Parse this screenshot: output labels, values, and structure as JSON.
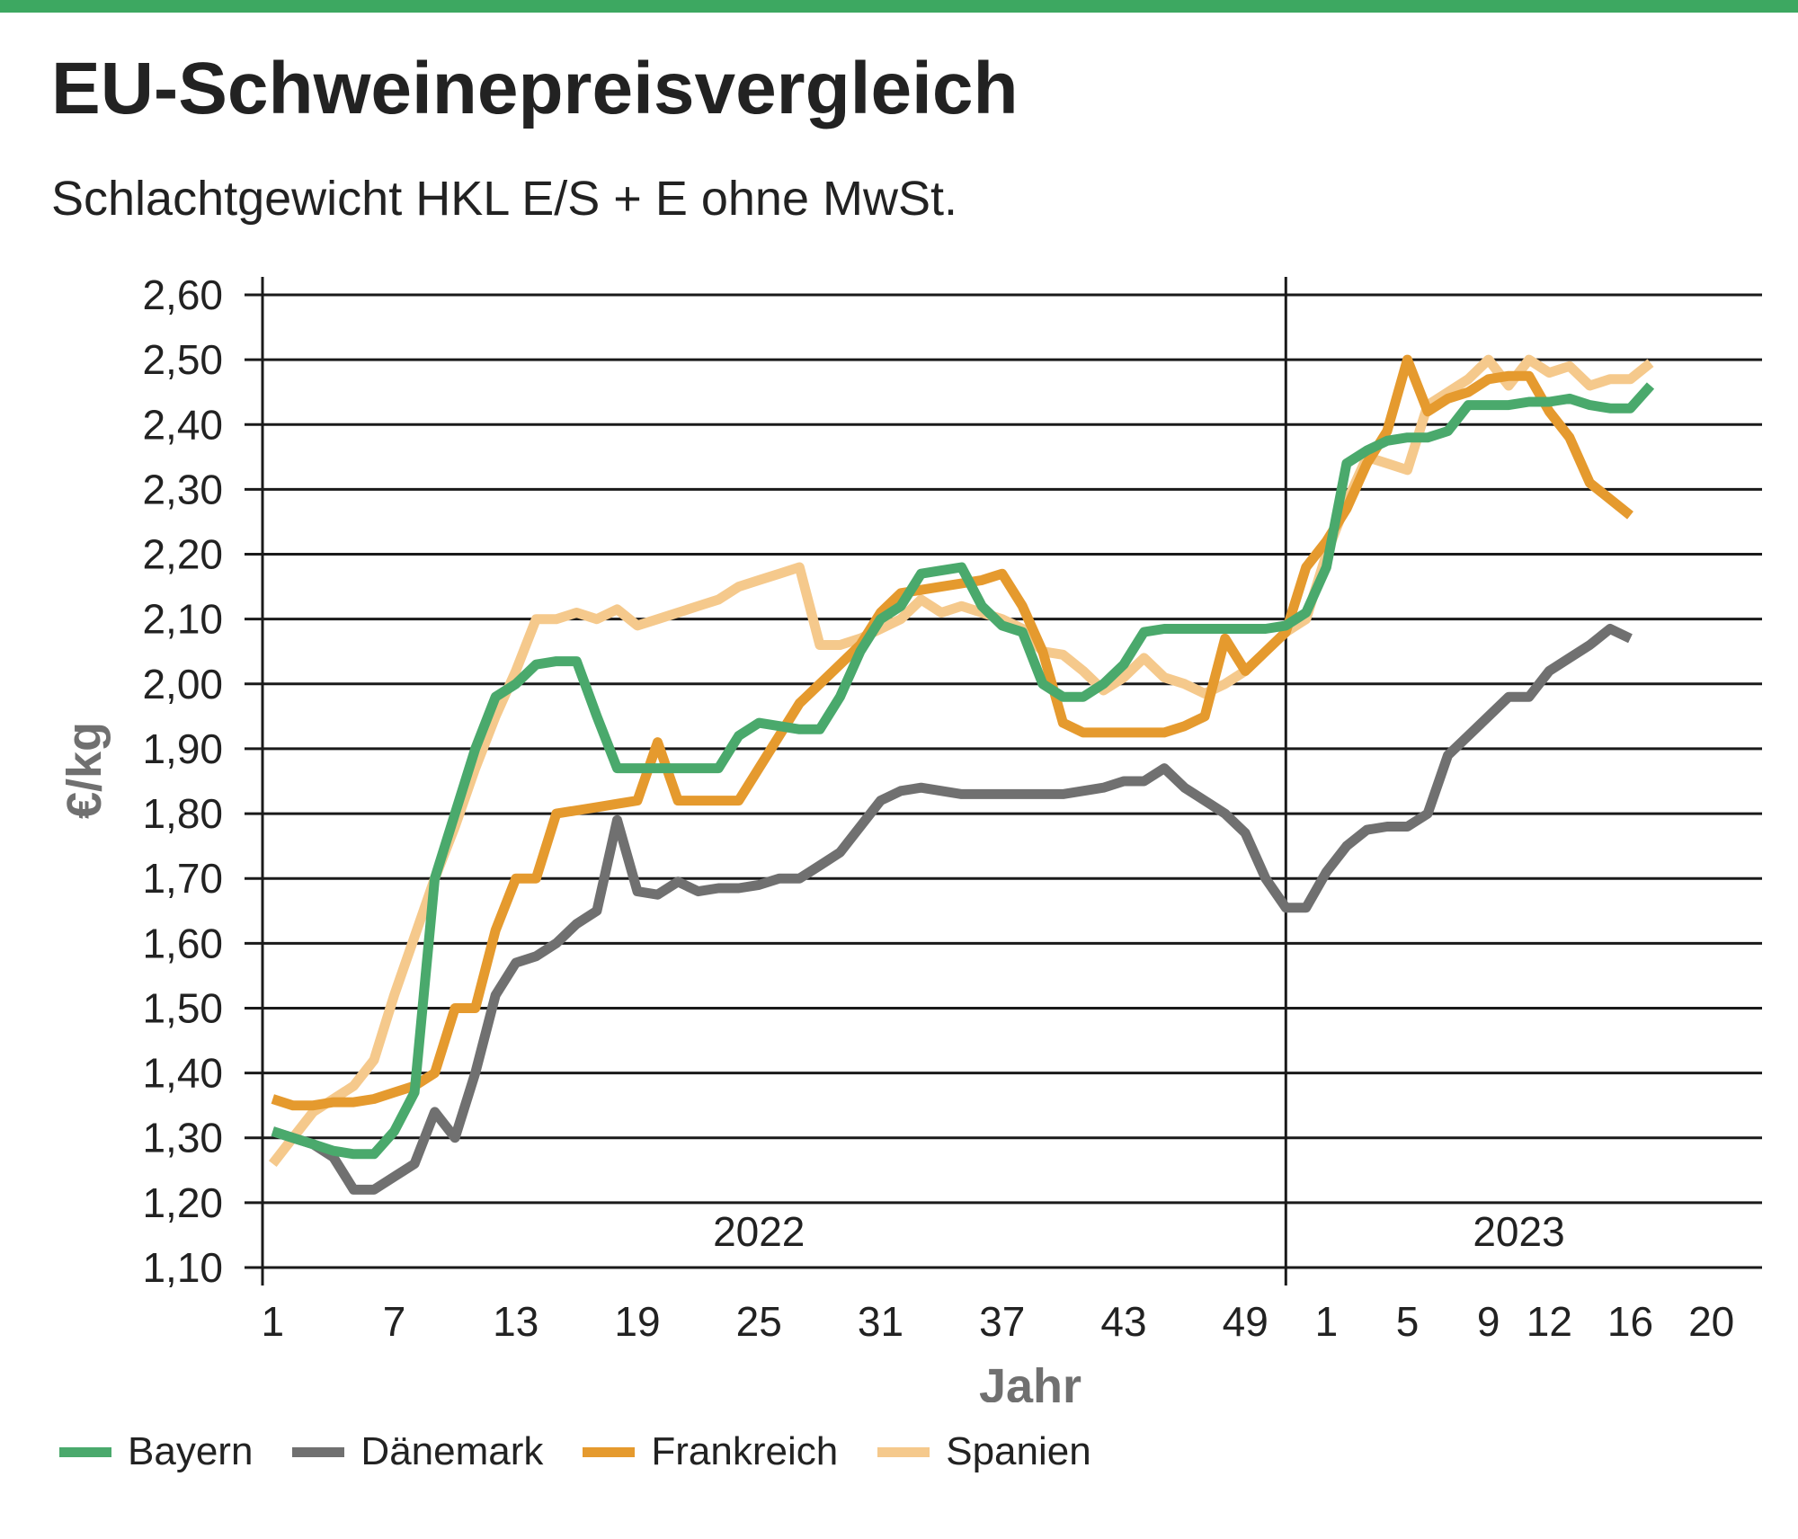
{
  "title": "EU-Schweinepreisvergleich",
  "subtitle": "Schlachtgewicht HKL E/S + E ohne MwSt.",
  "colors": {
    "accent_bar": "#3da861"
  },
  "chart_data": {
    "type": "line",
    "ylabel": "€/kg",
    "xlabel": "Jahr",
    "ylim": [
      1.1,
      2.6
    ],
    "y_ticks": [
      "2,60",
      "2,50",
      "2,40",
      "2,30",
      "2,20",
      "2,10",
      "2,00",
      "1,90",
      "1,80",
      "1,70",
      "1,60",
      "1,50",
      "1,40",
      "1,30",
      "1,20",
      "1,10"
    ],
    "x_weeks_total": 74,
    "x_tick_labels": [
      {
        "label": "1",
        "week": 1
      },
      {
        "label": "7",
        "week": 7
      },
      {
        "label": "13",
        "week": 13
      },
      {
        "label": "19",
        "week": 19
      },
      {
        "label": "25",
        "week": 25
      },
      {
        "label": "31",
        "week": 31
      },
      {
        "label": "37",
        "week": 37
      },
      {
        "label": "43",
        "week": 43
      },
      {
        "label": "49",
        "week": 49
      },
      {
        "label": "1",
        "week": 53
      },
      {
        "label": "5",
        "week": 57
      },
      {
        "label": "9",
        "week": 61
      },
      {
        "label": "12",
        "week": 64
      },
      {
        "label": "16",
        "week": 68
      },
      {
        "label": "20",
        "week": 72
      }
    ],
    "year_labels": [
      {
        "label": "2022",
        "center_week": 25
      },
      {
        "label": "2023",
        "center_week": 62.5
      }
    ],
    "year_divider_week": 51,
    "grid": true,
    "legend_position": "bottom",
    "series": [
      {
        "name": "Bayern",
        "color": "#4aa96c",
        "points": [
          [
            1,
            1.31
          ],
          [
            2,
            1.3
          ],
          [
            3,
            1.29
          ],
          [
            4,
            1.28
          ],
          [
            5,
            1.275
          ],
          [
            6,
            1.275
          ],
          [
            7,
            1.31
          ],
          [
            8,
            1.37
          ],
          [
            9,
            1.7
          ],
          [
            10,
            1.8
          ],
          [
            11,
            1.9
          ],
          [
            12,
            1.98
          ],
          [
            13,
            2.0
          ],
          [
            14,
            2.03
          ],
          [
            15,
            2.035
          ],
          [
            16,
            2.035
          ],
          [
            17,
            1.95
          ],
          [
            18,
            1.87
          ],
          [
            19,
            1.87
          ],
          [
            20,
            1.87
          ],
          [
            21,
            1.87
          ],
          [
            22,
            1.87
          ],
          [
            23,
            1.87
          ],
          [
            24,
            1.92
          ],
          [
            25,
            1.94
          ],
          [
            26,
            1.935
          ],
          [
            27,
            1.93
          ],
          [
            28,
            1.93
          ],
          [
            29,
            1.98
          ],
          [
            30,
            2.05
          ],
          [
            31,
            2.1
          ],
          [
            32,
            2.12
          ],
          [
            33,
            2.17
          ],
          [
            34,
            2.175
          ],
          [
            35,
            2.18
          ],
          [
            36,
            2.12
          ],
          [
            37,
            2.09
          ],
          [
            38,
            2.08
          ],
          [
            39,
            2.0
          ],
          [
            40,
            1.98
          ],
          [
            41,
            1.98
          ],
          [
            42,
            2.0
          ],
          [
            43,
            2.03
          ],
          [
            44,
            2.08
          ],
          [
            45,
            2.085
          ],
          [
            46,
            2.085
          ],
          [
            47,
            2.085
          ],
          [
            48,
            2.085
          ],
          [
            49,
            2.085
          ],
          [
            50,
            2.085
          ],
          [
            51,
            2.09
          ],
          [
            52,
            2.11
          ],
          [
            53,
            2.18
          ],
          [
            54,
            2.34
          ],
          [
            55,
            2.36
          ],
          [
            56,
            2.375
          ],
          [
            57,
            2.38
          ],
          [
            58,
            2.38
          ],
          [
            59,
            2.39
          ],
          [
            60,
            2.43
          ],
          [
            61,
            2.43
          ],
          [
            62,
            2.43
          ],
          [
            63,
            2.435
          ],
          [
            64,
            2.435
          ],
          [
            65,
            2.44
          ],
          [
            66,
            2.43
          ],
          [
            67,
            2.425
          ],
          [
            68,
            2.425
          ],
          [
            69,
            2.46
          ]
        ]
      },
      {
        "name": "Dänemark",
        "color": "#707070",
        "points": [
          [
            1,
            1.31
          ],
          [
            2,
            1.3
          ],
          [
            3,
            1.29
          ],
          [
            4,
            1.27
          ],
          [
            5,
            1.22
          ],
          [
            6,
            1.22
          ],
          [
            7,
            1.24
          ],
          [
            8,
            1.26
          ],
          [
            9,
            1.34
          ],
          [
            10,
            1.3
          ],
          [
            11,
            1.4
          ],
          [
            12,
            1.52
          ],
          [
            13,
            1.57
          ],
          [
            14,
            1.58
          ],
          [
            15,
            1.6
          ],
          [
            16,
            1.63
          ],
          [
            17,
            1.65
          ],
          [
            18,
            1.79
          ],
          [
            19,
            1.68
          ],
          [
            20,
            1.675
          ],
          [
            21,
            1.695
          ],
          [
            22,
            1.68
          ],
          [
            23,
            1.685
          ],
          [
            24,
            1.685
          ],
          [
            25,
            1.69
          ],
          [
            26,
            1.7
          ],
          [
            27,
            1.7
          ],
          [
            28,
            1.72
          ],
          [
            29,
            1.74
          ],
          [
            30,
            1.78
          ],
          [
            31,
            1.82
          ],
          [
            32,
            1.835
          ],
          [
            33,
            1.84
          ],
          [
            34,
            1.835
          ],
          [
            35,
            1.83
          ],
          [
            36,
            1.83
          ],
          [
            37,
            1.83
          ],
          [
            38,
            1.83
          ],
          [
            39,
            1.83
          ],
          [
            40,
            1.83
          ],
          [
            41,
            1.835
          ],
          [
            42,
            1.84
          ],
          [
            43,
            1.85
          ],
          [
            44,
            1.85
          ],
          [
            45,
            1.87
          ],
          [
            46,
            1.84
          ],
          [
            47,
            1.82
          ],
          [
            48,
            1.8
          ],
          [
            49,
            1.77
          ],
          [
            50,
            1.7
          ],
          [
            51,
            1.655
          ],
          [
            52,
            1.655
          ],
          [
            53,
            1.71
          ],
          [
            54,
            1.75
          ],
          [
            55,
            1.775
          ],
          [
            56,
            1.78
          ],
          [
            57,
            1.78
          ],
          [
            58,
            1.8
          ],
          [
            59,
            1.89
          ],
          [
            60,
            1.92
          ],
          [
            61,
            1.95
          ],
          [
            62,
            1.98
          ],
          [
            63,
            1.98
          ],
          [
            64,
            2.02
          ],
          [
            65,
            2.04
          ],
          [
            66,
            2.06
          ],
          [
            67,
            2.085
          ],
          [
            68,
            2.07
          ]
        ]
      },
      {
        "name": "Frankreich",
        "color": "#e59a2e",
        "points": [
          [
            1,
            1.36
          ],
          [
            2,
            1.35
          ],
          [
            3,
            1.35
          ],
          [
            4,
            1.355
          ],
          [
            5,
            1.355
          ],
          [
            6,
            1.36
          ],
          [
            7,
            1.37
          ],
          [
            8,
            1.38
          ],
          [
            9,
            1.4
          ],
          [
            10,
            1.5
          ],
          [
            11,
            1.5
          ],
          [
            12,
            1.62
          ],
          [
            13,
            1.7
          ],
          [
            14,
            1.7
          ],
          [
            15,
            1.8
          ],
          [
            16,
            1.805
          ],
          [
            17,
            1.81
          ],
          [
            18,
            1.815
          ],
          [
            19,
            1.82
          ],
          [
            20,
            1.91
          ],
          [
            21,
            1.82
          ],
          [
            22,
            1.82
          ],
          [
            23,
            1.82
          ],
          [
            24,
            1.82
          ],
          [
            25,
            1.87
          ],
          [
            26,
            1.92
          ],
          [
            27,
            1.97
          ],
          [
            28,
            2.0
          ],
          [
            29,
            2.03
          ],
          [
            30,
            2.06
          ],
          [
            31,
            2.11
          ],
          [
            32,
            2.14
          ],
          [
            33,
            2.145
          ],
          [
            34,
            2.15
          ],
          [
            35,
            2.155
          ],
          [
            36,
            2.16
          ],
          [
            37,
            2.17
          ],
          [
            38,
            2.12
          ],
          [
            39,
            2.05
          ],
          [
            40,
            1.94
          ],
          [
            41,
            1.925
          ],
          [
            42,
            1.925
          ],
          [
            43,
            1.925
          ],
          [
            44,
            1.925
          ],
          [
            45,
            1.925
          ],
          [
            46,
            1.935
          ],
          [
            47,
            1.95
          ],
          [
            48,
            2.07
          ],
          [
            49,
            2.02
          ],
          [
            50,
            2.05
          ],
          [
            51,
            2.08
          ],
          [
            52,
            2.18
          ],
          [
            53,
            2.22
          ],
          [
            54,
            2.27
          ],
          [
            55,
            2.34
          ],
          [
            56,
            2.39
          ],
          [
            57,
            2.5
          ],
          [
            58,
            2.42
          ],
          [
            59,
            2.44
          ],
          [
            60,
            2.45
          ],
          [
            61,
            2.47
          ],
          [
            62,
            2.475
          ],
          [
            63,
            2.475
          ],
          [
            64,
            2.42
          ],
          [
            65,
            2.38
          ],
          [
            66,
            2.31
          ],
          [
            67,
            2.285
          ],
          [
            68,
            2.26
          ]
        ]
      },
      {
        "name": "Spanien",
        "color": "#f5c98c",
        "points": [
          [
            1,
            1.26
          ],
          [
            2,
            1.3
          ],
          [
            3,
            1.34
          ],
          [
            4,
            1.36
          ],
          [
            5,
            1.38
          ],
          [
            6,
            1.42
          ],
          [
            7,
            1.52
          ],
          [
            8,
            1.61
          ],
          [
            9,
            1.7
          ],
          [
            10,
            1.78
          ],
          [
            11,
            1.87
          ],
          [
            12,
            1.95
          ],
          [
            13,
            2.02
          ],
          [
            14,
            2.1
          ],
          [
            15,
            2.1
          ],
          [
            16,
            2.11
          ],
          [
            17,
            2.1
          ],
          [
            18,
            2.115
          ],
          [
            19,
            2.09
          ],
          [
            20,
            2.1
          ],
          [
            21,
            2.11
          ],
          [
            22,
            2.12
          ],
          [
            23,
            2.13
          ],
          [
            24,
            2.15
          ],
          [
            25,
            2.16
          ],
          [
            26,
            2.17
          ],
          [
            27,
            2.18
          ],
          [
            28,
            2.06
          ],
          [
            29,
            2.06
          ],
          [
            30,
            2.07
          ],
          [
            31,
            2.085
          ],
          [
            32,
            2.1
          ],
          [
            33,
            2.13
          ],
          [
            34,
            2.11
          ],
          [
            35,
            2.12
          ],
          [
            36,
            2.11
          ],
          [
            37,
            2.1
          ],
          [
            38,
            2.085
          ],
          [
            39,
            2.05
          ],
          [
            40,
            2.045
          ],
          [
            41,
            2.02
          ],
          [
            42,
            1.99
          ],
          [
            43,
            2.01
          ],
          [
            44,
            2.04
          ],
          [
            45,
            2.01
          ],
          [
            46,
            2.0
          ],
          [
            47,
            1.985
          ],
          [
            48,
            2.0
          ],
          [
            49,
            2.02
          ],
          [
            50,
            2.05
          ],
          [
            51,
            2.08
          ],
          [
            52,
            2.1
          ],
          [
            53,
            2.2
          ],
          [
            54,
            2.28
          ],
          [
            55,
            2.35
          ],
          [
            56,
            2.34
          ],
          [
            57,
            2.33
          ],
          [
            58,
            2.43
          ],
          [
            59,
            2.45
          ],
          [
            60,
            2.47
          ],
          [
            61,
            2.5
          ],
          [
            62,
            2.46
          ],
          [
            63,
            2.5
          ],
          [
            64,
            2.48
          ],
          [
            65,
            2.49
          ],
          [
            66,
            2.46
          ],
          [
            67,
            2.47
          ],
          [
            68,
            2.47
          ],
          [
            69,
            2.495
          ]
        ]
      }
    ]
  }
}
